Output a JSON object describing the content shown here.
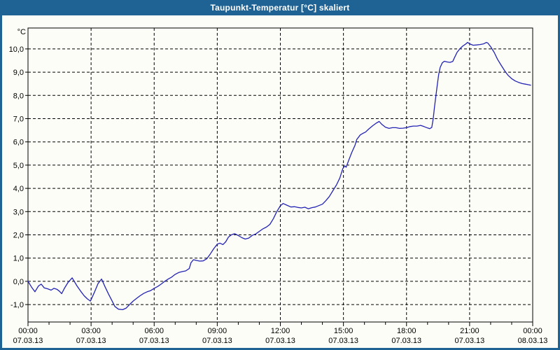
{
  "window": {
    "title": "Taupunkt-Temperatur [°C] skaliert"
  },
  "colors": {
    "titlebar_bg": "#1F6394",
    "titlebar_text": "#FFFFFF",
    "frame": "#1F6394",
    "content_bg": "#FCFDF7",
    "axis": "#000000",
    "grid": "#000000",
    "tick_text": "#000000",
    "series_line": "#2323B4"
  },
  "chart_data": {
    "type": "line",
    "title": "Taupunkt-Temperatur [°C] skaliert",
    "unit_label": "°C",
    "grid": "dashed",
    "legend": "none",
    "x_axis": {
      "kind": "time-hours",
      "range_hours": [
        0,
        24
      ],
      "minor_tick_every_hours": 1,
      "gridlines_at_hours": [
        3,
        6,
        9,
        12,
        15,
        18,
        21
      ],
      "major_ticks": [
        {
          "hour": 0,
          "time": "00:00",
          "date": "07.03.13"
        },
        {
          "hour": 3,
          "time": "03:00",
          "date": "07.03.13"
        },
        {
          "hour": 6,
          "time": "06:00",
          "date": "07.03.13"
        },
        {
          "hour": 9,
          "time": "09:00",
          "date": "07.03.13"
        },
        {
          "hour": 12,
          "time": "12:00",
          "date": "07.03.13"
        },
        {
          "hour": 15,
          "time": "15:00",
          "date": "07.03.13"
        },
        {
          "hour": 18,
          "time": "18:00",
          "date": "07.03.13"
        },
        {
          "hour": 21,
          "time": "21:00",
          "date": "07.03.13"
        },
        {
          "hour": 24,
          "time": "00:00",
          "date": "08.03.13"
        }
      ]
    },
    "y_axis": {
      "range": [
        -1.75,
        10.9
      ],
      "ticks": [
        {
          "value": 10,
          "label": "10,0"
        },
        {
          "value": 9,
          "label": "9,0"
        },
        {
          "value": 8,
          "label": "8,0"
        },
        {
          "value": 7,
          "label": "7,0"
        },
        {
          "value": 6,
          "label": "6,0"
        },
        {
          "value": 5,
          "label": "5,0"
        },
        {
          "value": 4,
          "label": "4,0"
        },
        {
          "value": 3,
          "label": "3,0"
        },
        {
          "value": 2,
          "label": "2,0"
        },
        {
          "value": 1,
          "label": "1,0"
        },
        {
          "value": 0,
          "label": "0,0"
        },
        {
          "value": -1,
          "label": "-1,0"
        }
      ]
    },
    "series": [
      {
        "name": "Taupunkt-Temperatur",
        "color": "#2323B4",
        "points_hour_degC": [
          [
            0.0,
            0.0
          ],
          [
            0.17,
            -0.25
          ],
          [
            0.33,
            -0.45
          ],
          [
            0.5,
            -0.2
          ],
          [
            0.63,
            -0.12
          ],
          [
            0.77,
            -0.28
          ],
          [
            0.93,
            -0.32
          ],
          [
            1.1,
            -0.38
          ],
          [
            1.23,
            -0.3
          ],
          [
            1.37,
            -0.34
          ],
          [
            1.5,
            -0.43
          ],
          [
            1.6,
            -0.53
          ],
          [
            1.73,
            -0.3
          ],
          [
            1.9,
            -0.05
          ],
          [
            2.1,
            0.15
          ],
          [
            2.33,
            -0.2
          ],
          [
            2.5,
            -0.42
          ],
          [
            2.67,
            -0.62
          ],
          [
            2.83,
            -0.76
          ],
          [
            2.97,
            -0.85
          ],
          [
            3.17,
            -0.45
          ],
          [
            3.33,
            -0.1
          ],
          [
            3.5,
            0.1
          ],
          [
            3.67,
            -0.25
          ],
          [
            3.83,
            -0.55
          ],
          [
            4.0,
            -0.85
          ],
          [
            4.13,
            -1.08
          ],
          [
            4.3,
            -1.2
          ],
          [
            4.5,
            -1.22
          ],
          [
            4.67,
            -1.15
          ],
          [
            4.83,
            -1.0
          ],
          [
            5.0,
            -0.85
          ],
          [
            5.17,
            -0.73
          ],
          [
            5.33,
            -0.62
          ],
          [
            5.5,
            -0.52
          ],
          [
            5.67,
            -0.45
          ],
          [
            5.83,
            -0.4
          ],
          [
            6.0,
            -0.3
          ],
          [
            6.17,
            -0.22
          ],
          [
            6.33,
            -0.12
          ],
          [
            6.5,
            0.0
          ],
          [
            6.67,
            0.1
          ],
          [
            6.83,
            0.18
          ],
          [
            7.0,
            0.3
          ],
          [
            7.17,
            0.38
          ],
          [
            7.33,
            0.42
          ],
          [
            7.5,
            0.45
          ],
          [
            7.67,
            0.55
          ],
          [
            7.75,
            0.8
          ],
          [
            7.87,
            0.93
          ],
          [
            8.0,
            0.9
          ],
          [
            8.17,
            0.87
          ],
          [
            8.33,
            0.88
          ],
          [
            8.5,
            0.97
          ],
          [
            8.67,
            1.18
          ],
          [
            8.83,
            1.4
          ],
          [
            9.0,
            1.6
          ],
          [
            9.13,
            1.64
          ],
          [
            9.27,
            1.58
          ],
          [
            9.4,
            1.7
          ],
          [
            9.53,
            1.9
          ],
          [
            9.67,
            2.0
          ],
          [
            9.83,
            2.05
          ],
          [
            10.0,
            1.97
          ],
          [
            10.17,
            1.88
          ],
          [
            10.33,
            1.82
          ],
          [
            10.5,
            1.86
          ],
          [
            10.67,
            1.98
          ],
          [
            10.83,
            2.04
          ],
          [
            11.0,
            2.15
          ],
          [
            11.17,
            2.26
          ],
          [
            11.33,
            2.33
          ],
          [
            11.5,
            2.45
          ],
          [
            11.67,
            2.7
          ],
          [
            11.83,
            3.0
          ],
          [
            12.0,
            3.25
          ],
          [
            12.13,
            3.35
          ],
          [
            12.3,
            3.28
          ],
          [
            12.5,
            3.2
          ],
          [
            12.67,
            3.21
          ],
          [
            12.83,
            3.18
          ],
          [
            13.0,
            3.16
          ],
          [
            13.17,
            3.19
          ],
          [
            13.33,
            3.12
          ],
          [
            13.5,
            3.17
          ],
          [
            13.67,
            3.2
          ],
          [
            13.83,
            3.26
          ],
          [
            14.0,
            3.32
          ],
          [
            14.17,
            3.48
          ],
          [
            14.33,
            3.65
          ],
          [
            14.5,
            3.9
          ],
          [
            14.67,
            4.15
          ],
          [
            14.83,
            4.45
          ],
          [
            14.97,
            4.85
          ],
          [
            15.07,
            4.97
          ],
          [
            15.13,
            4.91
          ],
          [
            15.25,
            5.2
          ],
          [
            15.4,
            5.55
          ],
          [
            15.55,
            5.85
          ],
          [
            15.63,
            6.1
          ],
          [
            15.8,
            6.3
          ],
          [
            15.95,
            6.38
          ],
          [
            16.05,
            6.42
          ],
          [
            16.2,
            6.55
          ],
          [
            16.4,
            6.7
          ],
          [
            16.55,
            6.8
          ],
          [
            16.7,
            6.88
          ],
          [
            16.83,
            6.75
          ],
          [
            17.0,
            6.63
          ],
          [
            17.17,
            6.58
          ],
          [
            17.33,
            6.61
          ],
          [
            17.5,
            6.61
          ],
          [
            17.67,
            6.58
          ],
          [
            17.83,
            6.59
          ],
          [
            18.0,
            6.61
          ],
          [
            18.17,
            6.66
          ],
          [
            18.33,
            6.68
          ],
          [
            18.5,
            6.68
          ],
          [
            18.67,
            6.71
          ],
          [
            18.83,
            6.66
          ],
          [
            19.0,
            6.6
          ],
          [
            19.1,
            6.57
          ],
          [
            19.2,
            6.62
          ],
          [
            19.27,
            7.0
          ],
          [
            19.33,
            7.5
          ],
          [
            19.4,
            8.0
          ],
          [
            19.47,
            8.5
          ],
          [
            19.53,
            8.9
          ],
          [
            19.6,
            9.2
          ],
          [
            19.7,
            9.4
          ],
          [
            19.8,
            9.47
          ],
          [
            19.93,
            9.44
          ],
          [
            20.07,
            9.42
          ],
          [
            20.2,
            9.46
          ],
          [
            20.27,
            9.6
          ],
          [
            20.4,
            9.85
          ],
          [
            20.53,
            10.0
          ],
          [
            20.67,
            10.12
          ],
          [
            20.8,
            10.2
          ],
          [
            20.9,
            10.28
          ],
          [
            21.0,
            10.22
          ],
          [
            21.17,
            10.16
          ],
          [
            21.33,
            10.17
          ],
          [
            21.5,
            10.19
          ],
          [
            21.67,
            10.22
          ],
          [
            21.8,
            10.28
          ],
          [
            21.87,
            10.25
          ],
          [
            22.0,
            10.1
          ],
          [
            22.17,
            9.85
          ],
          [
            22.33,
            9.55
          ],
          [
            22.5,
            9.3
          ],
          [
            22.67,
            9.06
          ],
          [
            22.83,
            8.86
          ],
          [
            23.0,
            8.72
          ],
          [
            23.17,
            8.62
          ],
          [
            23.33,
            8.56
          ],
          [
            23.5,
            8.51
          ],
          [
            23.67,
            8.48
          ],
          [
            23.83,
            8.45
          ],
          [
            23.9,
            8.44
          ]
        ]
      }
    ]
  }
}
